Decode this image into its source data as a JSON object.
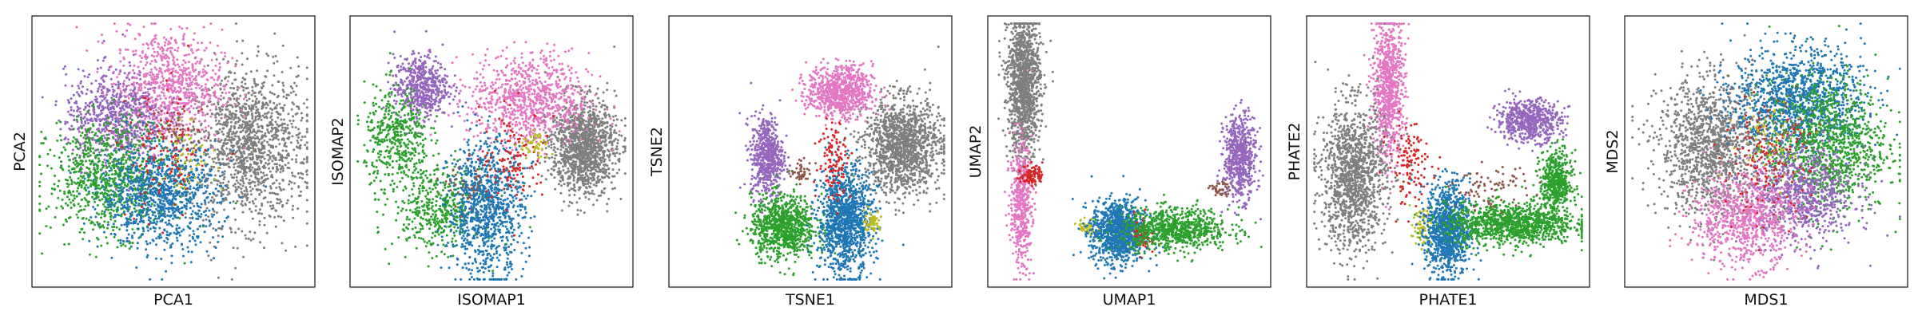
{
  "figure": {
    "colors": {
      "blue": "#1f77b4",
      "green": "#2ca02c",
      "red": "#d62728",
      "purple": "#9467bd",
      "brown": "#8c564b",
      "pink": "#e377c2",
      "gray": "#7f7f7f",
      "olive": "#bcbd22"
    }
  },
  "chart_data": [
    {
      "type": "scatter",
      "xlabel": "PCA1",
      "ylabel": "PCA2",
      "xlim": [
        0,
        100
      ],
      "ylim": [
        0,
        100
      ],
      "ticks": "none",
      "grid": false,
      "legend": "none",
      "clusters": [
        {
          "color": "gray",
          "n": 1400,
          "cx": 78,
          "cy": 52,
          "sx": 11,
          "sy": 15
        },
        {
          "color": "pink",
          "n": 850,
          "cx": 48,
          "cy": 75,
          "sx": 10,
          "sy": 11
        },
        {
          "color": "purple",
          "n": 700,
          "cx": 28,
          "cy": 63,
          "sx": 9,
          "sy": 9
        },
        {
          "color": "green",
          "n": 900,
          "cx": 26,
          "cy": 40,
          "sx": 11,
          "sy": 11
        },
        {
          "color": "blue",
          "n": 1000,
          "cx": 45,
          "cy": 33,
          "sx": 11,
          "sy": 10
        },
        {
          "color": "red",
          "n": 130,
          "cx": 47,
          "cy": 48,
          "sx": 7,
          "sy": 13
        },
        {
          "color": "olive",
          "n": 50,
          "cx": 56,
          "cy": 48,
          "sx": 5,
          "sy": 6
        },
        {
          "color": "brown",
          "n": 40,
          "cx": 52,
          "cy": 58,
          "sx": 5,
          "sy": 5
        }
      ]
    },
    {
      "type": "scatter",
      "xlabel": "ISOMAP1",
      "ylabel": "ISOMAP2",
      "xlim": [
        0,
        100
      ],
      "ylim": [
        0,
        100
      ],
      "ticks": "none",
      "grid": false,
      "legend": "none",
      "clusters": [
        {
          "color": "gray",
          "n": 1300,
          "cx": 84,
          "cy": 52,
          "sx": 6,
          "sy": 9
        },
        {
          "color": "pink",
          "n": 850,
          "cx": 64,
          "cy": 70,
          "sx": 11,
          "sy": 9
        },
        {
          "color": "purple",
          "n": 550,
          "cx": 24,
          "cy": 75,
          "sx": 5,
          "sy": 6
        },
        {
          "color": "green",
          "n": 450,
          "cx": 15,
          "cy": 55,
          "sx": 6,
          "sy": 10
        },
        {
          "color": "green",
          "n": 450,
          "cx": 30,
          "cy": 28,
          "sx": 8,
          "sy": 8
        },
        {
          "color": "blue",
          "n": 1000,
          "cx": 48,
          "cy": 28,
          "sx": 7,
          "sy": 13
        },
        {
          "color": "red",
          "n": 130,
          "cx": 58,
          "cy": 48,
          "sx": 6,
          "sy": 9
        },
        {
          "color": "olive",
          "n": 50,
          "cx": 66,
          "cy": 52,
          "sx": 3,
          "sy": 3
        },
        {
          "color": "brown",
          "n": 40,
          "cx": 42,
          "cy": 36,
          "sx": 4,
          "sy": 4
        }
      ]
    },
    {
      "type": "scatter",
      "xlabel": "TSNE1",
      "ylabel": "TSNE2",
      "xlim": [
        0,
        100
      ],
      "ylim": [
        0,
        100
      ],
      "ticks": "none",
      "grid": false,
      "legend": "none",
      "clusters": [
        {
          "color": "gray",
          "n": 1400,
          "cx": 84,
          "cy": 52,
          "sx": 7,
          "sy": 9
        },
        {
          "color": "pink",
          "n": 800,
          "cx": 61,
          "cy": 73,
          "sx": 6,
          "sy": 5
        },
        {
          "color": "purple",
          "n": 600,
          "cx": 34,
          "cy": 48,
          "sx": 3,
          "sy": 8
        },
        {
          "color": "green",
          "n": 900,
          "cx": 40,
          "cy": 21,
          "sx": 6,
          "sy": 6
        },
        {
          "color": "blue",
          "n": 1200,
          "cx": 63,
          "cy": 23,
          "sx": 5,
          "sy": 10
        },
        {
          "color": "red",
          "n": 120,
          "cx": 59,
          "cy": 47,
          "sx": 3,
          "sy": 8
        },
        {
          "color": "olive",
          "n": 60,
          "cx": 73,
          "cy": 23,
          "sx": 1.5,
          "sy": 2
        },
        {
          "color": "brown",
          "n": 50,
          "cx": 47,
          "cy": 42,
          "sx": 2,
          "sy": 2
        }
      ]
    },
    {
      "type": "scatter",
      "xlabel": "UMAP1",
      "ylabel": "UMAP2",
      "xlim": [
        0,
        100
      ],
      "ylim": [
        0,
        100
      ],
      "ticks": "none",
      "grid": false,
      "legend": "none",
      "clusters": [
        {
          "color": "gray",
          "n": 1300,
          "cx": 11,
          "cy": 76,
          "sx": 3,
          "sy": 14
        },
        {
          "color": "pink",
          "n": 500,
          "cx": 10,
          "cy": 30,
          "sx": 2,
          "sy": 12
        },
        {
          "color": "red",
          "n": 100,
          "cx": 14,
          "cy": 41,
          "sx": 2,
          "sy": 2
        },
        {
          "color": "olive",
          "n": 50,
          "cx": 35,
          "cy": 21,
          "sx": 2,
          "sy": 1.5
        },
        {
          "color": "blue",
          "n": 1100,
          "cx": 46,
          "cy": 19,
          "sx": 5,
          "sy": 6
        },
        {
          "color": "red",
          "n": 60,
          "cx": 55,
          "cy": 18,
          "sx": 1.5,
          "sy": 4
        },
        {
          "color": "green",
          "n": 800,
          "cx": 67,
          "cy": 20,
          "sx": 10,
          "sy": 4
        },
        {
          "color": "brown",
          "n": 50,
          "cx": 84,
          "cy": 35,
          "sx": 2,
          "sy": 2
        },
        {
          "color": "purple",
          "n": 600,
          "cx": 91,
          "cy": 48,
          "sx": 3,
          "sy": 8
        }
      ]
    },
    {
      "type": "scatter",
      "xlabel": "PHATE1",
      "ylabel": "PHATE2",
      "xlim": [
        0,
        100
      ],
      "ylim": [
        0,
        100
      ],
      "ticks": "none",
      "grid": false,
      "legend": "none",
      "clusters": [
        {
          "color": "pink",
          "n": 800,
          "cx": 28,
          "cy": 75,
          "sx": 3,
          "sy": 14
        },
        {
          "color": "gray",
          "n": 1300,
          "cx": 15,
          "cy": 40,
          "sx": 6,
          "sy": 14
        },
        {
          "color": "red",
          "n": 130,
          "cx": 36,
          "cy": 45,
          "sx": 4,
          "sy": 8
        },
        {
          "color": "olive",
          "n": 60,
          "cx": 40,
          "cy": 20,
          "sx": 2,
          "sy": 4
        },
        {
          "color": "blue",
          "n": 1000,
          "cx": 50,
          "cy": 20,
          "sx": 4,
          "sy": 9
        },
        {
          "color": "green",
          "n": 1100,
          "cx": 73,
          "cy": 22,
          "sx": 12,
          "sy": 4
        },
        {
          "color": "green",
          "n": 500,
          "cx": 90,
          "cy": 38,
          "sx": 3,
          "sy": 6
        },
        {
          "color": "brown",
          "n": 80,
          "cx": 66,
          "cy": 36,
          "sx": 7,
          "sy": 4
        },
        {
          "color": "purple",
          "n": 600,
          "cx": 80,
          "cy": 62,
          "sx": 6,
          "sy": 4
        }
      ]
    },
    {
      "type": "scatter",
      "xlabel": "MDS1",
      "ylabel": "MDS2",
      "xlim": [
        0,
        100
      ],
      "ylim": [
        0,
        100
      ],
      "ticks": "none",
      "grid": false,
      "legend": "none",
      "clusters": [
        {
          "color": "gray",
          "n": 1300,
          "cx": 30,
          "cy": 52,
          "sx": 10,
          "sy": 13
        },
        {
          "color": "blue",
          "n": 1200,
          "cx": 62,
          "cy": 70,
          "sx": 12,
          "sy": 10
        },
        {
          "color": "green",
          "n": 1100,
          "cx": 73,
          "cy": 52,
          "sx": 11,
          "sy": 13
        },
        {
          "color": "purple",
          "n": 800,
          "cx": 63,
          "cy": 33,
          "sx": 10,
          "sy": 9
        },
        {
          "color": "pink",
          "n": 800,
          "cx": 42,
          "cy": 24,
          "sx": 10,
          "sy": 9
        },
        {
          "color": "red",
          "n": 150,
          "cx": 50,
          "cy": 45,
          "sx": 8,
          "sy": 10
        },
        {
          "color": "olive",
          "n": 60,
          "cx": 52,
          "cy": 55,
          "sx": 8,
          "sy": 8
        },
        {
          "color": "brown",
          "n": 60,
          "cx": 55,
          "cy": 60,
          "sx": 9,
          "sy": 9
        }
      ]
    }
  ]
}
